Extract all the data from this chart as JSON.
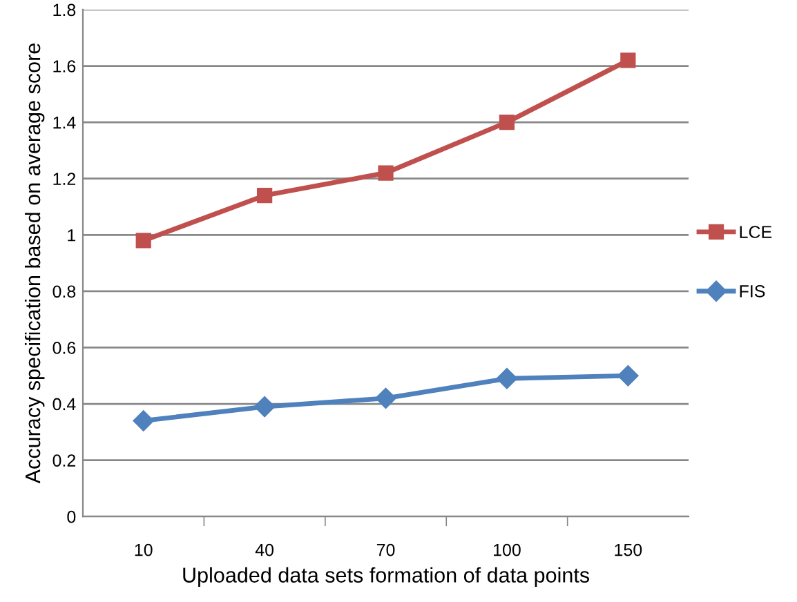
{
  "chart_data": {
    "type": "line",
    "xlabel": "Uploaded data sets formation of data points",
    "ylabel": "Accuracy specification based on average score",
    "categories": [
      "10",
      "40",
      "70",
      "100",
      "150"
    ],
    "series": [
      {
        "name": "LCE",
        "color": "#c0504d",
        "marker": "square",
        "values": [
          0.98,
          1.14,
          1.22,
          1.4,
          1.62
        ]
      },
      {
        "name": "FIS",
        "color": "#4f81bd",
        "marker": "diamond",
        "values": [
          0.34,
          0.39,
          0.42,
          0.49,
          0.5
        ]
      }
    ],
    "ylim": [
      0,
      1.8
    ],
    "yticks": [
      0,
      0.2,
      0.4,
      0.6,
      0.8,
      1,
      1.2,
      1.4,
      1.6,
      1.8
    ],
    "grid": "y",
    "legend": "right",
    "line_style": "solid"
  }
}
